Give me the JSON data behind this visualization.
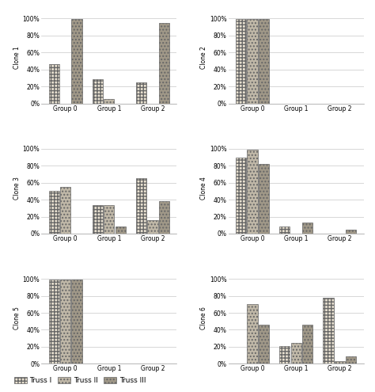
{
  "clones": [
    {
      "name": "Clone 1",
      "data": {
        "Group 0": [
          46,
          0,
          99
        ],
        "Group 1": [
          29,
          5,
          0
        ],
        "Group 2": [
          25,
          0,
          95
        ]
      }
    },
    {
      "name": "Clone 2",
      "data": {
        "Group 0": [
          99,
          99,
          99
        ],
        "Group 1": [
          0,
          0,
          0
        ],
        "Group 2": [
          0,
          0,
          0
        ]
      }
    },
    {
      "name": "Clone 3",
      "data": {
        "Group 0": [
          50,
          55,
          0
        ],
        "Group 1": [
          34,
          34,
          8
        ],
        "Group 2": [
          65,
          16,
          38
        ]
      }
    },
    {
      "name": "Clone 4",
      "data": {
        "Group 0": [
          90,
          99,
          82
        ],
        "Group 1": [
          8,
          0,
          13
        ],
        "Group 2": [
          0,
          0,
          5
        ]
      }
    },
    {
      "name": "Clone 5",
      "data": {
        "Group 0": [
          99,
          99,
          99
        ],
        "Group 1": [
          0,
          0,
          0
        ],
        "Group 2": [
          0,
          0,
          0
        ]
      }
    },
    {
      "name": "Clone 6",
      "data": {
        "Group 0": [
          0,
          70,
          46
        ],
        "Group 1": [
          21,
          25,
          46
        ],
        "Group 2": [
          78,
          3,
          9
        ]
      }
    }
  ],
  "groups": [
    "Group 0",
    "Group 1",
    "Group 2"
  ],
  "truss_labels": [
    "Truss I",
    "Truss II",
    "Truss III"
  ],
  "bar_colors": [
    "#e8e0d0",
    "#c0b8a8",
    "#a09888"
  ],
  "bar_hatches": [
    "++++",
    "....",
    "...."
  ],
  "bar_hatch_colors": [
    "#888880",
    "#888880",
    "#888880"
  ],
  "ylim": [
    0,
    108
  ],
  "yticks": [
    0,
    20,
    40,
    60,
    80,
    100
  ],
  "ytick_labels": [
    "0%",
    "20%",
    "40%",
    "60%",
    "80%",
    "100%"
  ],
  "bar_width": 0.26,
  "background_color": "#ffffff",
  "grid_color": "#c8c8c8",
  "font_size": 5.5,
  "legend_fontsize": 6.5
}
